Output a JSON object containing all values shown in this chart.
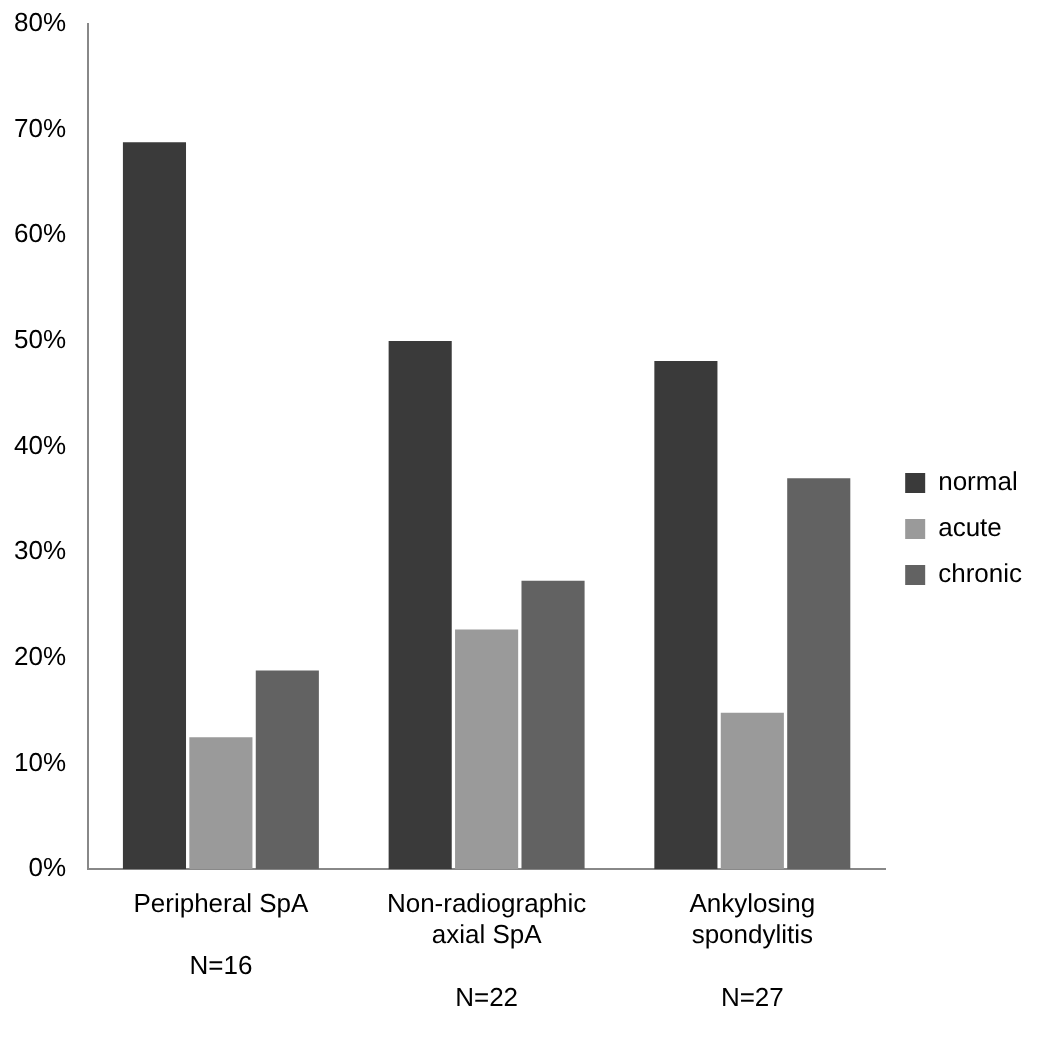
{
  "chart_data": {
    "type": "bar",
    "categories": [
      "Peripheral SpA\n\nN=16",
      "Non-radiographic\naxial SpA\n\nN=22",
      "Ankylosing\nspondylitis\n\nN=27"
    ],
    "series": [
      {
        "name": "normal",
        "color": "#3a3a3a",
        "values": [
          68.8,
          50,
          48.1
        ]
      },
      {
        "name": "acute",
        "color": "#9a9a9a",
        "values": [
          12.5,
          22.7,
          14.8
        ]
      },
      {
        "name": "chronic",
        "color": "#626262",
        "values": [
          18.8,
          27.3,
          37.0
        ]
      }
    ],
    "ylim": [
      0,
      80
    ],
    "yticks": [
      {
        "value": 0,
        "label": "0%"
      },
      {
        "value": 10,
        "label": "10%"
      },
      {
        "value": 20,
        "label": "20%"
      },
      {
        "value": 30,
        "label": "30%"
      },
      {
        "value": 40,
        "label": "40%"
      },
      {
        "value": 50,
        "label": "50%"
      },
      {
        "value": 60,
        "label": "60%"
      },
      {
        "value": 70,
        "label": "70%"
      },
      {
        "value": 80,
        "label": "80%"
      }
    ],
    "grid": false,
    "legend": "right"
  }
}
